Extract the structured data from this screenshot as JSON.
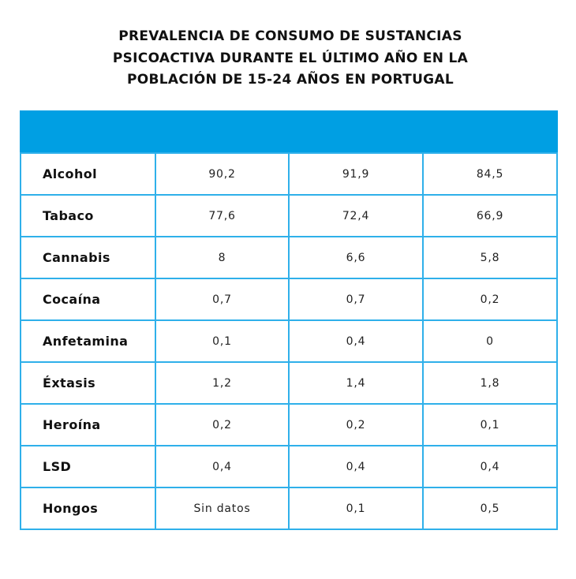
{
  "title_lines": [
    "PREVALENCIA DE CONSUMO DE SUSTANCIAS",
    "PSICOACTIVA DURANTE EL ÚLTIMO AÑO EN LA",
    "POBLACIÓN DE 15-24 AÑOS EN PORTUGAL"
  ],
  "header_color": "#009fe3",
  "chart_data": {
    "type": "table",
    "title": "PREVALENCIA DE CONSUMO DE SUSTANCIAS PSICOACTIVA DURANTE EL ÚLTIMO AÑO EN LA POBLACIÓN DE 15-24 AÑOS EN PORTUGAL",
    "columns": [
      "",
      "",
      "",
      ""
    ],
    "rows": [
      {
        "label": "Alcohol",
        "values": [
          "90,2",
          "91,9",
          "84,5"
        ]
      },
      {
        "label": "Tabaco",
        "values": [
          "77,6",
          "72,4",
          "66,9"
        ]
      },
      {
        "label": "Cannabis",
        "values": [
          "8",
          "6,6",
          "5,8"
        ]
      },
      {
        "label": "Cocaína",
        "values": [
          "0,7",
          "0,7",
          "0,2"
        ]
      },
      {
        "label": "Anfetamina",
        "values": [
          "0,1",
          "0,4",
          "0"
        ]
      },
      {
        "label": "Éxtasis",
        "values": [
          "1,2",
          "1,4",
          "1,8"
        ]
      },
      {
        "label": "Heroína",
        "values": [
          "0,2",
          "0,2",
          "0,1"
        ]
      },
      {
        "label": "LSD",
        "values": [
          "0,4",
          "0,4",
          "0,4"
        ]
      },
      {
        "label": "Hongos",
        "values": [
          "Sin datos",
          "0,1",
          "0,5"
        ]
      }
    ]
  }
}
